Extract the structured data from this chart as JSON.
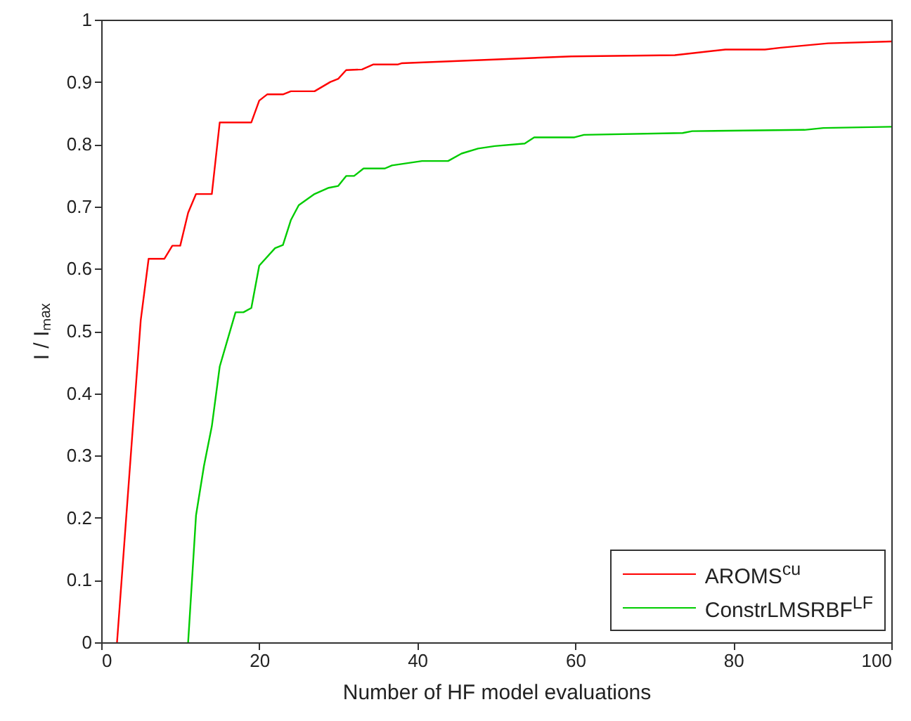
{
  "chart_data": {
    "type": "line",
    "xlabel": "Number of HF model evaluations",
    "ylabel": "I / Iₘₐₓ",
    "xlim": [
      0,
      100
    ],
    "xticks": [
      0,
      20,
      40,
      60,
      80,
      100
    ],
    "ylim": [
      0,
      1
    ],
    "yticks": [
      0,
      0.1,
      0.2,
      0.3,
      0.4,
      0.5,
      0.6,
      0.7,
      0.8,
      0.9,
      1
    ],
    "legend": "bottom right",
    "line_style": "solid",
    "series": [
      {
        "name": "AROMS$^{cu}$",
        "color": "#ff0000",
        "x": [
          2,
          5,
          6,
          8,
          9,
          10,
          11,
          12,
          14,
          15,
          19,
          20,
          21,
          23,
          24,
          27,
          29,
          30,
          31,
          33,
          34.4,
          37.5,
          38,
          59.5,
          72.6,
          79,
          84,
          86,
          92,
          100
        ],
        "values": [
          0,
          0.517,
          0.616,
          0.616,
          0.637,
          0.637,
          0.69,
          0.72,
          0.72,
          0.835,
          0.835,
          0.87,
          0.88,
          0.88,
          0.885,
          0.885,
          0.9,
          0.905,
          0.919,
          0.92,
          0.928,
          0.928,
          0.93,
          0.941,
          0.943,
          0.952,
          0.952,
          0.955,
          0.962,
          0.965
        ]
      },
      {
        "name": "ConstrLMSRBF$^{LF}$",
        "color": "#00cc00",
        "x": [
          11,
          12,
          13,
          14,
          15,
          17,
          18,
          19,
          20,
          22,
          23,
          24,
          25,
          27,
          28.8,
          30,
          31,
          32,
          33.2,
          35.9,
          36.8,
          40.6,
          43.9,
          45.6,
          47.7,
          49.8,
          53.6,
          54.8,
          59.9,
          61.1,
          73.6,
          74.8,
          89,
          91.4,
          100
        ],
        "values": [
          0,
          0.204,
          0.283,
          0.347,
          0.443,
          0.53,
          0.53,
          0.537,
          0.605,
          0.633,
          0.638,
          0.678,
          0.702,
          0.72,
          0.73,
          0.733,
          0.749,
          0.749,
          0.761,
          0.761,
          0.766,
          0.773,
          0.773,
          0.785,
          0.793,
          0.797,
          0.801,
          0.811,
          0.811,
          0.815,
          0.818,
          0.821,
          0.823,
          0.826,
          0.828
        ]
      }
    ]
  }
}
